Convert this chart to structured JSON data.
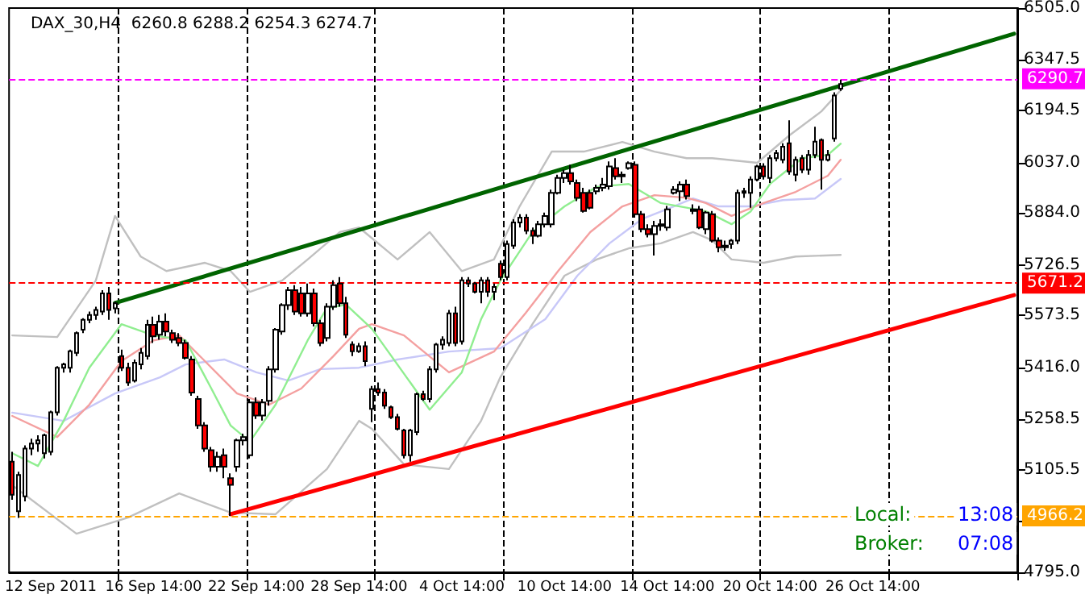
{
  "chart_data": {
    "type": "candlestick",
    "title": "DAX_30,H4  6260.8 6288.2 6254.3 6274.7",
    "annotations": [
      "Local:",
      "13:08",
      "Broker:",
      "07:08"
    ],
    "categories": [
      null,
      null,
      null,
      null,
      null,
      null,
      "12 Sep 2011",
      null,
      null,
      null,
      null,
      null,
      null,
      null,
      null,
      null,
      null,
      null,
      null,
      null,
      null,
      null,
      "16 Sep 14:00",
      null,
      null,
      null,
      null,
      null,
      null,
      null,
      null,
      null,
      null,
      null,
      null,
      null,
      null,
      null,
      "22 Sep 14:00",
      null,
      null,
      null,
      null,
      null,
      null,
      null,
      null,
      null,
      null,
      null,
      null,
      null,
      null,
      null,
      "28 Sep 14:00",
      null,
      null,
      null,
      null,
      null,
      null,
      null,
      null,
      null,
      null,
      null,
      null,
      null,
      null,
      null,
      "4 Oct 14:00",
      null,
      null,
      null,
      null,
      null,
      null,
      null,
      null,
      null,
      null,
      null,
      null,
      null,
      null,
      null,
      "10 Oct 14:00",
      null,
      null,
      null,
      null,
      null,
      null,
      null,
      null,
      null,
      null,
      null,
      null,
      null,
      null,
      null,
      "14 Oct 14:00",
      null,
      null,
      null,
      null,
      null,
      null,
      null,
      null,
      null,
      null,
      null,
      null,
      null,
      null,
      null,
      "20 Oct 14:00",
      null,
      null,
      null,
      null,
      null,
      null,
      null,
      null,
      null,
      null,
      null,
      null,
      null,
      null,
      null,
      "26 Oct 14:00",
      null,
      null,
      null,
      null,
      null,
      null,
      null,
      null,
      null,
      null,
      null,
      null,
      null,
      null,
      null,
      null,
      null,
      null,
      null,
      null,
      null,
      null
    ],
    "ylim": [
      4795,
      6505
    ],
    "yticks": [
      {
        "value": 4795,
        "label": "4795.0"
      },
      {
        "value": 4948,
        "label": null
      },
      {
        "value": 5105.5,
        "label": "5105.5"
      },
      {
        "value": 5258.5,
        "label": "5258.5"
      },
      {
        "value": 5416,
        "label": "5416.0"
      },
      {
        "value": 5573.5,
        "label": "5573.5"
      },
      {
        "value": 5726.5,
        "label": "5726.5"
      },
      {
        "value": 5884,
        "label": "5884.0"
      },
      {
        "value": 6037,
        "label": "6037.0"
      },
      {
        "value": 6194.5,
        "label": "6194.5"
      },
      {
        "value": 6347.5,
        "label": "6347.5"
      },
      {
        "value": 6505,
        "label": "6505.0"
      }
    ],
    "grid": "x",
    "ref_lines": [
      {
        "axis": "y",
        "value": 6290.7,
        "label": "6290.7",
        "color": "#ff00ff",
        "line_style": "dashed"
      },
      {
        "axis": "y",
        "value": 5671.2,
        "label": "5671.2",
        "color": "#ff0000",
        "line_style": "dashed"
      },
      {
        "axis": "y",
        "value": 4966.2,
        "label": "4966.2",
        "color": "#ffa500",
        "line_style": "dashed"
      }
    ],
    "series": [
      {
        "type": "line",
        "color": "#c0c0c0",
        "values": [
          5513,
          null,
          null,
          null,
          null,
          null,
          null,
          5508,
          null,
          null,
          null,
          null,
          null,
          5679,
          null,
          null,
          5875,
          null,
          null,
          null,
          5752,
          null,
          null,
          null,
          5708,
          null,
          null,
          null,
          null,
          null,
          5733,
          null,
          null,
          null,
          5708,
          null,
          null,
          5645,
          null,
          null,
          null,
          null,
          5679,
          null,
          null,
          null,
          5743,
          null,
          null,
          null,
          null,
          5826,
          null,
          null,
          5840,
          null,
          null,
          null,
          null,
          null,
          5743,
          null,
          null,
          null,
          null,
          5826,
          null,
          null,
          null,
          null,
          5708,
          null,
          null,
          null,
          null,
          5743,
          null,
          null,
          null,
          5904,
          null,
          null,
          null,
          null,
          6070,
          null,
          null,
          null,
          null,
          6070,
          null,
          null,
          null,
          null,
          null,
          6099,
          null,
          null,
          null,
          null,
          6070,
          null,
          null,
          null,
          null,
          6050,
          null,
          null,
          null,
          6050,
          null,
          null,
          null,
          null,
          null,
          null,
          6036,
          null,
          null,
          null,
          null,
          6119,
          null,
          null,
          null,
          null,
          6192,
          null,
          null,
          6256,
          null,
          null,
          null,
          null,
          null,
          null,
          null,
          null,
          null,
          null,
          null,
          null,
          null,
          null,
          null,
          null,
          null,
          null,
          null,
          null,
          null,
          null,
          null,
          null,
          null,
          null,
          null
        ]
      },
      {
        "type": "line",
        "color": "#c0c0c0",
        "values": [
          5059,
          null,
          null,
          null,
          null,
          null,
          null,
          null,
          null,
          null,
          4912,
          null,
          null,
          null,
          null,
          null,
          null,
          null,
          4961,
          null,
          null,
          null,
          null,
          null,
          null,
          null,
          5034,
          null,
          null,
          null,
          null,
          null,
          null,
          null,
          4976,
          null,
          null,
          null,
          null,
          null,
          null,
          4971,
          null,
          null,
          null,
          null,
          null,
          null,
          null,
          5108,
          null,
          null,
          null,
          null,
          5254,
          null,
          5230,
          null,
          null,
          null,
          null,
          5122,
          null,
          null,
          null,
          null,
          null,
          null,
          5108,
          null,
          null,
          null,
          null,
          5254,
          null,
          null,
          5386,
          null,
          null,
          null,
          null,
          5547,
          null,
          null,
          null,
          null,
          5694,
          null,
          null,
          null,
          null,
          5743,
          null,
          null,
          null,
          null,
          5777,
          null,
          null,
          null,
          null,
          5792,
          null,
          null,
          null,
          null,
          5826,
          null,
          null,
          5801,
          null,
          null,
          5743,
          null,
          null,
          null,
          null,
          5733,
          null,
          null,
          null,
          null,
          5752,
          null,
          null,
          null,
          null,
          null,
          null,
          5757,
          null,
          null,
          null,
          null,
          null,
          null,
          null,
          null,
          null,
          null,
          null,
          null,
          null,
          null,
          null,
          null,
          null,
          null,
          null,
          null,
          null,
          null,
          null,
          null,
          null,
          null,
          null
        ]
      },
      {
        "type": "line",
        "color": "#c8c8f8",
        "values": [
          5279,
          null,
          null,
          null,
          null,
          null,
          null,
          null,
          5254,
          null,
          null,
          null,
          null,
          null,
          null,
          null,
          5337,
          null,
          null,
          null,
          null,
          null,
          null,
          5386,
          null,
          null,
          null,
          5425,
          null,
          null,
          null,
          null,
          null,
          5440,
          null,
          null,
          null,
          null,
          5401,
          null,
          null,
          null,
          null,
          5376,
          null,
          null,
          null,
          null,
          5411,
          null,
          null,
          null,
          null,
          null,
          5415,
          null,
          null,
          null,
          null,
          null,
          5440,
          null,
          null,
          null,
          null,
          null,
          null,
          null,
          5464,
          null,
          null,
          null,
          null,
          null,
          null,
          null,
          5474,
          null,
          null,
          null,
          null,
          null,
          null,
          5562,
          null,
          null,
          null,
          null,
          5694,
          null,
          null,
          null,
          null,
          5792,
          null,
          null,
          null,
          null,
          5865,
          null,
          null,
          null,
          null,
          5904,
          null,
          null,
          5928,
          null,
          null,
          null,
          5904,
          null,
          null,
          null,
          null,
          5904,
          null,
          null,
          null,
          null,
          5923,
          null,
          null,
          null,
          null,
          5928,
          null,
          null,
          null,
          5987,
          null,
          null,
          null,
          null,
          null,
          null,
          null,
          null,
          null,
          null,
          null,
          null,
          null,
          null,
          null,
          null,
          null,
          null,
          null,
          null,
          null,
          null,
          null,
          null,
          null,
          null,
          null
        ]
      },
      {
        "type": "line",
        "color": "#f4a0a0",
        "values": [
          5269,
          null,
          null,
          null,
          null,
          null,
          null,
          5205,
          null,
          null,
          null,
          null,
          5303,
          null,
          null,
          null,
          null,
          5435,
          null,
          null,
          null,
          null,
          5498,
          null,
          null,
          null,
          5513,
          null,
          null,
          null,
          5435,
          null,
          null,
          null,
          null,
          5337,
          null,
          null,
          null,
          null,
          5303,
          null,
          null,
          null,
          null,
          5352,
          null,
          null,
          null,
          null,
          5450,
          null,
          null,
          null,
          5533,
          null,
          5547,
          null,
          null,
          null,
          null,
          5513,
          null,
          null,
          null,
          null,
          null,
          null,
          5401,
          null,
          null,
          null,
          null,
          null,
          null,
          5464,
          null,
          null,
          null,
          null,
          5582,
          null,
          null,
          null,
          null,
          5708,
          null,
          null,
          null,
          null,
          5826,
          null,
          null,
          null,
          null,
          5904,
          null,
          null,
          null,
          null,
          5938,
          null,
          null,
          null,
          null,
          5930,
          null,
          null,
          5914,
          null,
          null,
          null,
          5875,
          null,
          null,
          null,
          null,
          5914,
          null,
          null,
          null,
          null,
          5948,
          null,
          null,
          null,
          null,
          5997,
          null,
          6045,
          null,
          null,
          null,
          null,
          null,
          null,
          null,
          null,
          null,
          null,
          null,
          null,
          null,
          null,
          null,
          null,
          null,
          null,
          null,
          null,
          null,
          null,
          null,
          null,
          null,
          null,
          null
        ]
      },
      {
        "type": "line",
        "color": "#90ee90",
        "values": [
          5156,
          null,
          null,
          null,
          5117,
          null,
          null,
          null,
          5254,
          null,
          null,
          null,
          5415,
          null,
          null,
          null,
          null,
          5547,
          null,
          null,
          null,
          null,
          5513,
          null,
          null,
          null,
          null,
          5498,
          null,
          null,
          null,
          5352,
          null,
          null,
          5240,
          null,
          null,
          5191,
          null,
          null,
          null,
          5303,
          null,
          null,
          null,
          null,
          5498,
          null,
          null,
          5596,
          null,
          null,
          5606,
          null,
          null,
          null,
          5533,
          null,
          null,
          null,
          null,
          null,
          null,
          null,
          null,
          5288,
          null,
          null,
          null,
          null,
          5401,
          null,
          null,
          5562,
          null,
          null,
          5679,
          null,
          null,
          null,
          null,
          5826,
          null,
          null,
          null,
          null,
          5904,
          null,
          null,
          null,
          null,
          5963,
          null,
          null,
          null,
          null,
          5972,
          null,
          null,
          null,
          null,
          5914,
          null,
          null,
          null,
          5900,
          null,
          null,
          5889,
          null,
          null,
          null,
          5850,
          null,
          null,
          5889,
          null,
          null,
          5972,
          null,
          null,
          null,
          null,
          6050,
          null,
          null,
          null,
          6060,
          null,
          6094,
          null,
          null,
          null,
          null,
          null,
          null,
          null,
          null,
          null,
          null,
          null,
          null,
          null,
          null,
          null,
          null,
          null,
          null,
          null,
          null,
          null,
          null,
          null,
          null,
          null,
          null,
          null
        ]
      },
      {
        "type": "line",
        "color": "#006400",
        "values": [
          null,
          null,
          null,
          null,
          null,
          null,
          null,
          null,
          null,
          null,
          null,
          null,
          null,
          null,
          null,
          null,
          5611,
          null,
          null,
          null,
          null,
          null,
          null,
          null,
          null,
          null,
          null,
          null,
          null,
          null,
          null,
          null,
          null,
          null,
          null,
          null,
          null,
          null,
          null,
          null,
          null,
          null,
          null,
          null,
          null,
          null,
          null,
          null,
          null,
          null,
          null,
          null,
          null,
          null,
          null,
          null,
          null,
          null,
          null,
          null,
          null,
          null,
          null,
          null,
          null,
          null,
          null,
          null,
          null,
          null,
          null,
          null,
          null,
          null,
          null,
          null,
          null,
          null,
          null,
          null,
          null,
          null,
          null,
          null,
          null,
          null,
          null,
          null,
          null,
          null,
          null,
          null,
          null,
          null,
          null,
          null,
          null,
          null,
          null,
          null,
          null,
          null,
          null,
          null,
          null,
          null,
          null,
          null,
          null,
          null,
          null,
          null,
          null,
          null,
          null,
          null,
          null,
          null,
          null,
          null,
          null,
          null,
          null,
          null,
          null,
          null,
          null,
          null,
          null,
          null,
          null,
          null,
          null,
          null,
          null,
          null,
          null,
          null,
          null,
          null,
          null,
          null,
          null,
          null,
          null,
          null,
          null,
          null,
          null,
          null,
          null,
          null,
          null,
          null,
          null,
          null,
          6427
        ]
      },
      {
        "type": "line",
        "color": "#ff0000",
        "values": [
          null,
          null,
          null,
          null,
          null,
          null,
          null,
          null,
          null,
          null,
          null,
          null,
          null,
          null,
          null,
          null,
          null,
          null,
          null,
          null,
          null,
          null,
          null,
          null,
          null,
          null,
          null,
          null,
          null,
          null,
          null,
          null,
          null,
          null,
          4971,
          null,
          null,
          null,
          null,
          null,
          null,
          null,
          null,
          null,
          null,
          null,
          null,
          null,
          null,
          null,
          null,
          null,
          null,
          null,
          null,
          null,
          null,
          null,
          null,
          null,
          null,
          null,
          null,
          null,
          null,
          null,
          null,
          null,
          null,
          null,
          null,
          null,
          null,
          null,
          null,
          null,
          null,
          null,
          null,
          null,
          null,
          null,
          null,
          null,
          null,
          null,
          null,
          null,
          null,
          null,
          null,
          null,
          null,
          null,
          null,
          null,
          null,
          null,
          null,
          null,
          null,
          null,
          null,
          null,
          null,
          null,
          null,
          null,
          null,
          null,
          null,
          null,
          null,
          null,
          null,
          null,
          null,
          null,
          null,
          null,
          null,
          null,
          null,
          null,
          null,
          null,
          null,
          null,
          null,
          null,
          null,
          null,
          null,
          null,
          null,
          null,
          null,
          null,
          null,
          null,
          null,
          null,
          null,
          null,
          null,
          null,
          null,
          null,
          null,
          null,
          null,
          null,
          null,
          null,
          null,
          null,
          5635
        ]
      },
      {
        "colors": [
          "#ff0000",
          "#ffffff",
          "#ffffff",
          "#ffffff",
          "#ffffff",
          "#ffffff",
          "#ffffff",
          "#ffffff",
          "#ffffff",
          "#ffffff",
          "#ffffff",
          "#ffffff",
          "#ffffff",
          "#ffffff",
          "#ffffff",
          "#ff0000",
          "#ffffff",
          "#ff0000",
          "#ff0000",
          "#ffffff",
          "#ffffff",
          "#ffffff",
          "#ff0000",
          "#ffffff",
          "#ff0000",
          "#ff0000",
          "#ff0000",
          "#ff0000",
          "#ff0000",
          "#ff0000",
          "#ff0000",
          "#ff0000",
          "#ffffff",
          "#ff0000",
          "#ff0000",
          "#ffffff",
          "#ffffff",
          "#ffffff",
          "#ff0000",
          "#ffffff",
          "#ffffff",
          "#ffffff",
          "#ffffff",
          "#ffffff",
          "#ff0000",
          "#ff0000",
          "#ffffff",
          "#ff0000",
          "#ff0000",
          "#ffffff",
          "#ffffff",
          "#ff0000",
          "#ff0000",
          "#ff0000",
          "#ffffff",
          "#ff0000",
          "#ffffff",
          "#ff0000",
          "#ff0000",
          "#ff0000",
          "#ff0000",
          "#ff0000",
          "#ffffff",
          "#ffffff",
          "#ff0000",
          "#ffffff",
          "#ffffff",
          "#ffffff",
          "#ffffff",
          "#ff0000",
          "#ffffff",
          "#ff0000",
          "#ff0000",
          "#ffffff",
          "#ff0000",
          "#ffffff",
          "#ff0000",
          "#ffffff",
          "#ffffff",
          "#ffffff",
          "#ff0000",
          "#ff0000",
          "#ffffff",
          "#ffffff",
          "#ffffff",
          "#ffffff",
          "#ffffff",
          "#ff0000",
          "#ff0000",
          "#ff0000",
          "#ff0000",
          "#ffffff",
          "#ffffff",
          "#ffffff",
          "#ff0000",
          "#ffffff",
          "#ffffff",
          "#ff0000",
          "#ff0000",
          "#ff0000",
          "#ffffff",
          "#ffffff",
          "#ffffff",
          "#ffffff",
          "#ffffff",
          "#ff0000",
          "#ff0000",
          "#ff0000",
          "#ffffff",
          "#ff0000",
          "#ff0000",
          "#ffffff",
          "#ffffff",
          "#ffffff",
          "#ffffff",
          "#ffffff",
          "#ffffff",
          "#ff0000",
          "#ffffff",
          "#ffffff",
          "#ffffff",
          "#ff0000",
          "#ffffff",
          "#ff0000",
          "#ffffff",
          "#ffffff",
          "#ff0000",
          "#ffffff",
          "#ffffff",
          "#ffffff",
          null,
          null,
          null,
          null,
          null,
          null,
          null,
          null,
          null,
          null,
          null,
          null,
          null,
          null,
          null,
          null,
          null,
          null,
          null,
          null,
          null,
          null,
          null,
          null,
          null,
          null,
          null
        ],
        "ohlc": [
          [
            5130,
            5160,
            5015,
            5030
          ],
          [
            4980,
            5100,
            4960,
            5090
          ],
          [
            5025,
            5180,
            5010,
            5170
          ],
          [
            5170,
            5200,
            5150,
            5185
          ],
          [
            5185,
            5210,
            5160,
            5195
          ],
          [
            5156,
            5215,
            5140,
            5210
          ],
          [
            5160,
            5285,
            5150,
            5280
          ],
          [
            5280,
            5420,
            5270,
            5415
          ],
          [
            5415,
            5430,
            5400,
            5425
          ],
          [
            5415,
            5470,
            5400,
            5465
          ],
          [
            5460,
            5525,
            5450,
            5520
          ],
          [
            5530,
            5565,
            5520,
            5560
          ],
          [
            5560,
            5585,
            5550,
            5575
          ],
          [
            5575,
            5600,
            5560,
            5590
          ],
          [
            5585,
            5650,
            5575,
            5640
          ],
          [
            5640,
            5660,
            5560,
            5590
          ],
          [
            5595,
            5615,
            5580,
            5610
          ],
          [
            5450,
            5470,
            5405,
            5415
          ],
          [
            5415,
            5430,
            5360,
            5370
          ],
          [
            5376,
            5440,
            5370,
            5430
          ],
          [
            5425,
            5475,
            5410,
            5460
          ],
          [
            5450,
            5560,
            5440,
            5545
          ],
          [
            5545,
            5570,
            5490,
            5510
          ],
          [
            5515,
            5575,
            5500,
            5555
          ],
          [
            5555,
            5580,
            5510,
            5525
          ],
          [
            5520,
            5530,
            5490,
            5500
          ],
          [
            5505,
            5520,
            5480,
            5490
          ],
          [
            5490,
            5500,
            5440,
            5445
          ],
          [
            5440,
            5450,
            5330,
            5340
          ],
          [
            5320,
            5330,
            5230,
            5240
          ],
          [
            5240,
            5250,
            5160,
            5170
          ],
          [
            5165,
            5175,
            5100,
            5115
          ],
          [
            5115,
            5160,
            5100,
            5145
          ],
          [
            5150,
            5170,
            5080,
            5115
          ],
          [
            5080,
            5095,
            4966,
            5060
          ],
          [
            5115,
            5200,
            5100,
            5195
          ],
          [
            5195,
            5215,
            5180,
            5205
          ],
          [
            5150,
            5320,
            5140,
            5310
          ],
          [
            5310,
            5325,
            5260,
            5270
          ],
          [
            5270,
            5320,
            5255,
            5310
          ],
          [
            5315,
            5420,
            5300,
            5410
          ],
          [
            5410,
            5535,
            5400,
            5530
          ],
          [
            5525,
            5610,
            5515,
            5605
          ],
          [
            5605,
            5660,
            5590,
            5650
          ],
          [
            5650,
            5665,
            5575,
            5585
          ],
          [
            5640,
            5660,
            5570,
            5580
          ],
          [
            5580,
            5670,
            5570,
            5640
          ],
          [
            5640,
            5655,
            5540,
            5550
          ],
          [
            5550,
            5560,
            5480,
            5490
          ],
          [
            5505,
            5610,
            5495,
            5600
          ],
          [
            5600,
            5680,
            5590,
            5665
          ],
          [
            5670,
            5690,
            5600,
            5610
          ],
          [
            5610,
            5630,
            5505,
            5515
          ],
          [
            5485,
            5495,
            5450,
            5465
          ],
          [
            5465,
            5490,
            5460,
            5480
          ],
          [
            5480,
            5495,
            5420,
            5435
          ],
          [
            5290,
            5360,
            5250,
            5350
          ],
          [
            5350,
            5370,
            5330,
            5340
          ],
          [
            5340,
            5350,
            5290,
            5300
          ],
          [
            5295,
            5300,
            5260,
            5265
          ],
          [
            5265,
            5275,
            5225,
            5230
          ],
          [
            5225,
            5230,
            5140,
            5150
          ],
          [
            5150,
            5230,
            5130,
            5225
          ],
          [
            5220,
            5340,
            5210,
            5335
          ],
          [
            5335,
            5345,
            5315,
            5320
          ],
          [
            5320,
            5420,
            5310,
            5410
          ],
          [
            5410,
            5490,
            5400,
            5485
          ],
          [
            5485,
            5510,
            5470,
            5500
          ],
          [
            5490,
            5590,
            5480,
            5580
          ],
          [
            5580,
            5600,
            5480,
            5490
          ],
          [
            5495,
            5690,
            5485,
            5680
          ],
          [
            5680,
            5690,
            5660,
            5670
          ],
          [
            5670,
            5675,
            5640,
            5645
          ],
          [
            5645,
            5690,
            5610,
            5680
          ],
          [
            5680,
            5690,
            5630,
            5645
          ],
          [
            5645,
            5670,
            5620,
            5660
          ],
          [
            5730,
            5740,
            5680,
            5690
          ],
          [
            5690,
            5800,
            5680,
            5790
          ],
          [
            5785,
            5865,
            5775,
            5855
          ],
          [
            5855,
            5880,
            5840,
            5870
          ],
          [
            5870,
            5880,
            5820,
            5830
          ],
          [
            5830,
            5840,
            5790,
            5815
          ],
          [
            5815,
            5860,
            5810,
            5850
          ],
          [
            5850,
            5885,
            5840,
            5875
          ],
          [
            5850,
            5955,
            5840,
            5945
          ],
          [
            5945,
            6000,
            5940,
            5990
          ],
          [
            5990,
            6015,
            5975,
            6005
          ],
          [
            6005,
            6030,
            5970,
            5980
          ],
          [
            5975,
            5985,
            5920,
            5930
          ],
          [
            5945,
            5960,
            5885,
            5890
          ],
          [
            5945,
            5955,
            5895,
            5900
          ],
          [
            5950,
            5970,
            5940,
            5960
          ],
          [
            5960,
            5990,
            5950,
            5970
          ],
          [
            5965,
            6040,
            5955,
            6025
          ],
          [
            6020,
            6050,
            5985,
            5995
          ],
          [
            5995,
            6010,
            5975,
            6000
          ],
          [
            6020,
            6040,
            6015,
            6035
          ],
          [
            6030,
            6040,
            5870,
            5880
          ],
          [
            5880,
            5890,
            5825,
            5835
          ],
          [
            5835,
            5850,
            5810,
            5820
          ],
          [
            5820,
            5860,
            5755,
            5845
          ],
          [
            5845,
            5865,
            5830,
            5850
          ],
          [
            5840,
            5905,
            5830,
            5895
          ],
          [
            5945,
            5965,
            5940,
            5955
          ],
          [
            5950,
            5980,
            5920,
            5970
          ],
          [
            5970,
            5985,
            5925,
            5935
          ],
          [
            5895,
            5910,
            5880,
            5890
          ],
          [
            5895,
            5905,
            5835,
            5840
          ],
          [
            5835,
            5890,
            5820,
            5885
          ],
          [
            5880,
            5890,
            5795,
            5800
          ],
          [
            5800,
            5810,
            5765,
            5780
          ],
          [
            5780,
            5800,
            5770,
            5785
          ],
          [
            5790,
            5805,
            5775,
            5800
          ],
          [
            5800,
            5955,
            5790,
            5945
          ],
          [
            5945,
            5960,
            5930,
            5950
          ],
          [
            5945,
            5995,
            5900,
            5985
          ],
          [
            5985,
            6030,
            5980,
            6025
          ],
          [
            6025,
            6035,
            5985,
            5995
          ],
          [
            5990,
            6060,
            5975,
            6050
          ],
          [
            6050,
            6075,
            6040,
            6065
          ],
          [
            6045,
            6095,
            6035,
            6085
          ],
          [
            6095,
            6165,
            6000,
            6010
          ],
          [
            6000,
            6055,
            5980,
            6045
          ],
          [
            6050,
            6060,
            6005,
            6015
          ],
          [
            6015,
            6075,
            6000,
            6060
          ],
          [
            6060,
            6145,
            6050,
            6100
          ],
          [
            6105,
            6110,
            5955,
            6045
          ],
          [
            6045,
            6075,
            6040,
            6060
          ],
          [
            6110,
            6250,
            6100,
            6240
          ],
          [
            6260.8,
            6288.2,
            6254.3,
            6274.7
          ],
          null,
          null,
          null,
          null,
          null,
          null,
          null,
          null,
          null,
          null,
          null,
          null,
          null,
          null,
          null,
          null,
          null,
          null,
          null,
          null,
          null,
          null,
          null,
          null,
          null,
          null,
          null
        ]
      }
    ]
  }
}
